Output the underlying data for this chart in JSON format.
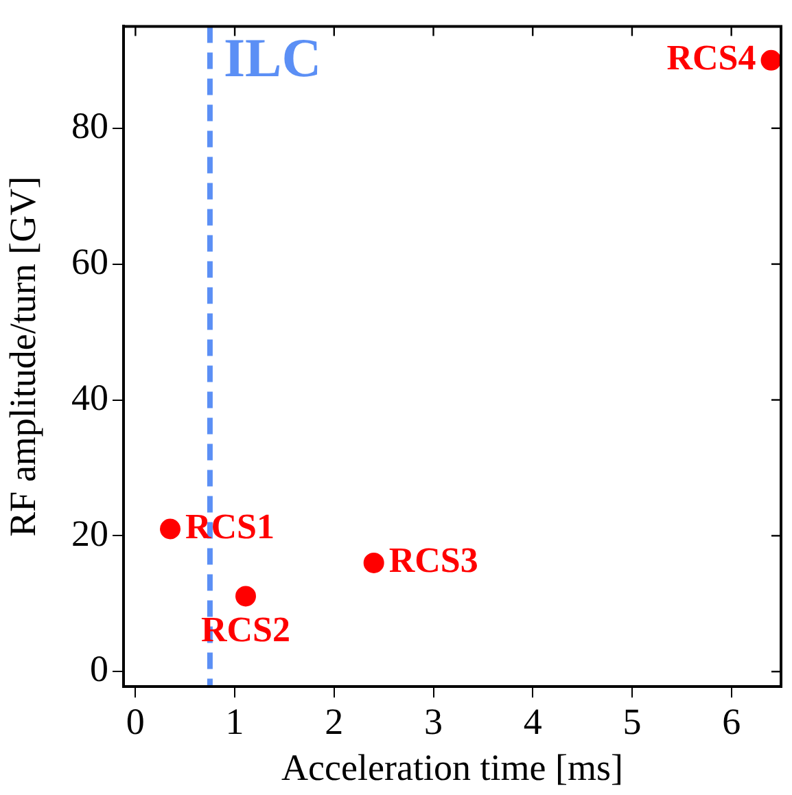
{
  "chart_data": {
    "type": "scatter",
    "xlabel": "Acceleration time [ms]",
    "ylabel": "RF amplitude/turn [GV]",
    "xlim": [
      -0.12,
      6.5
    ],
    "ylim": [
      -2.2,
      95
    ],
    "xticks": [
      0,
      1,
      2,
      3,
      4,
      5,
      6
    ],
    "yticks": [
      0,
      20,
      40,
      60,
      80
    ],
    "grid": false,
    "legend": false,
    "marker": "circle",
    "series": [
      {
        "name": "RCS1",
        "color": "#ff0000",
        "x": [
          0.35
        ],
        "values": [
          21
        ]
      },
      {
        "name": "RCS2",
        "color": "#ff0000",
        "x": [
          1.11
        ],
        "values": [
          11.1
        ]
      },
      {
        "name": "RCS3",
        "color": "#ff0000",
        "x": [
          2.4
        ],
        "values": [
          16
        ]
      },
      {
        "name": "RCS4",
        "color": "#ff0000",
        "x": [
          6.4
        ],
        "values": [
          90
        ]
      }
    ],
    "ref_lines": [
      {
        "axis": "x",
        "value": 0.75,
        "label": "ILC",
        "color": "#5b8ff5",
        "line_style": "dashed"
      }
    ]
  }
}
